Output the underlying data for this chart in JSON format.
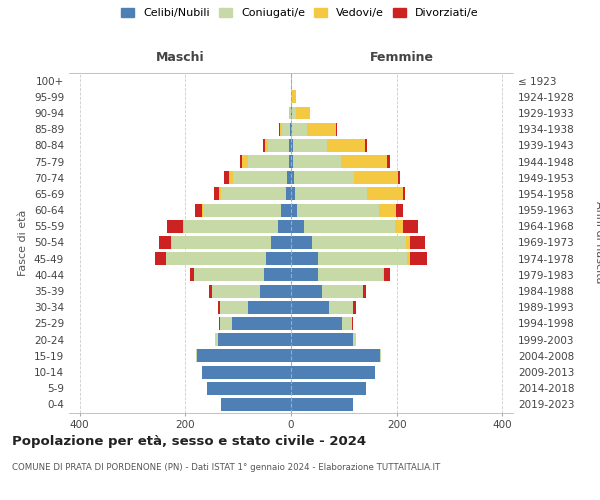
{
  "age_groups": [
    "100+",
    "95-99",
    "90-94",
    "85-89",
    "80-84",
    "75-79",
    "70-74",
    "65-69",
    "60-64",
    "55-59",
    "50-54",
    "45-49",
    "40-44",
    "35-39",
    "30-34",
    "25-29",
    "20-24",
    "15-19",
    "10-14",
    "5-9",
    "0-4"
  ],
  "birth_years": [
    "≤ 1923",
    "1924-1928",
    "1929-1933",
    "1934-1938",
    "1939-1943",
    "1944-1948",
    "1949-1953",
    "1954-1958",
    "1959-1963",
    "1964-1968",
    "1969-1973",
    "1974-1978",
    "1979-1983",
    "1984-1988",
    "1989-1993",
    "1994-1998",
    "1999-2003",
    "2004-2008",
    "2009-2013",
    "2014-2018",
    "2019-2023"
  ],
  "male_celibe": [
    0,
    0,
    0,
    2,
    3,
    4,
    8,
    10,
    18,
    25,
    38,
    48,
    52,
    58,
    82,
    112,
    138,
    178,
    168,
    158,
    132
  ],
  "male_coniugato": [
    0,
    0,
    2,
    15,
    40,
    78,
    102,
    122,
    148,
    178,
    188,
    188,
    132,
    92,
    52,
    22,
    5,
    2,
    0,
    0,
    0
  ],
  "male_vedovo": [
    0,
    0,
    2,
    4,
    6,
    10,
    8,
    5,
    3,
    2,
    1,
    1,
    0,
    0,
    0,
    0,
    0,
    0,
    0,
    0,
    0
  ],
  "male_divorziato": [
    0,
    0,
    0,
    2,
    4,
    5,
    8,
    8,
    12,
    30,
    22,
    20,
    8,
    5,
    5,
    2,
    0,
    0,
    0,
    0,
    0
  ],
  "female_celibe": [
    0,
    0,
    2,
    2,
    3,
    4,
    5,
    8,
    12,
    25,
    40,
    52,
    52,
    58,
    72,
    97,
    118,
    168,
    158,
    142,
    118
  ],
  "female_coniugato": [
    0,
    2,
    8,
    28,
    65,
    90,
    115,
    135,
    155,
    172,
    178,
    168,
    122,
    78,
    46,
    18,
    5,
    2,
    0,
    0,
    0
  ],
  "female_vedovo": [
    2,
    8,
    25,
    55,
    72,
    88,
    82,
    68,
    32,
    15,
    8,
    5,
    2,
    1,
    0,
    0,
    0,
    0,
    0,
    0,
    0
  ],
  "female_divorziato": [
    0,
    0,
    0,
    2,
    4,
    5,
    5,
    5,
    12,
    28,
    28,
    32,
    12,
    5,
    5,
    2,
    0,
    0,
    0,
    0,
    0
  ],
  "color_celibe": "#4e7fb5",
  "color_coniugato": "#c8d9a8",
  "color_vedovo": "#f5c842",
  "color_divorziato": "#cc2222",
  "title": "Popolazione per età, sesso e stato civile - 2024",
  "subtitle": "COMUNE DI PRATA DI PORDENONE (PN) - Dati ISTAT 1° gennaio 2024 - Elaborazione TUTTAITALIA.IT",
  "label_maschi": "Maschi",
  "label_femmine": "Femmine",
  "ylabel_left": "Fasce di età",
  "ylabel_right": "Anni di nascita",
  "legend_labels": [
    "Celibi/Nubili",
    "Coniugati/e",
    "Vedovi/e",
    "Divorziati/e"
  ],
  "xlim": 420,
  "xticks": [
    -400,
    -200,
    0,
    200,
    400
  ],
  "xtick_labels": [
    "400",
    "200",
    "0",
    "200",
    "400"
  ],
  "background_color": "#ffffff",
  "grid_color": "#cccccc"
}
